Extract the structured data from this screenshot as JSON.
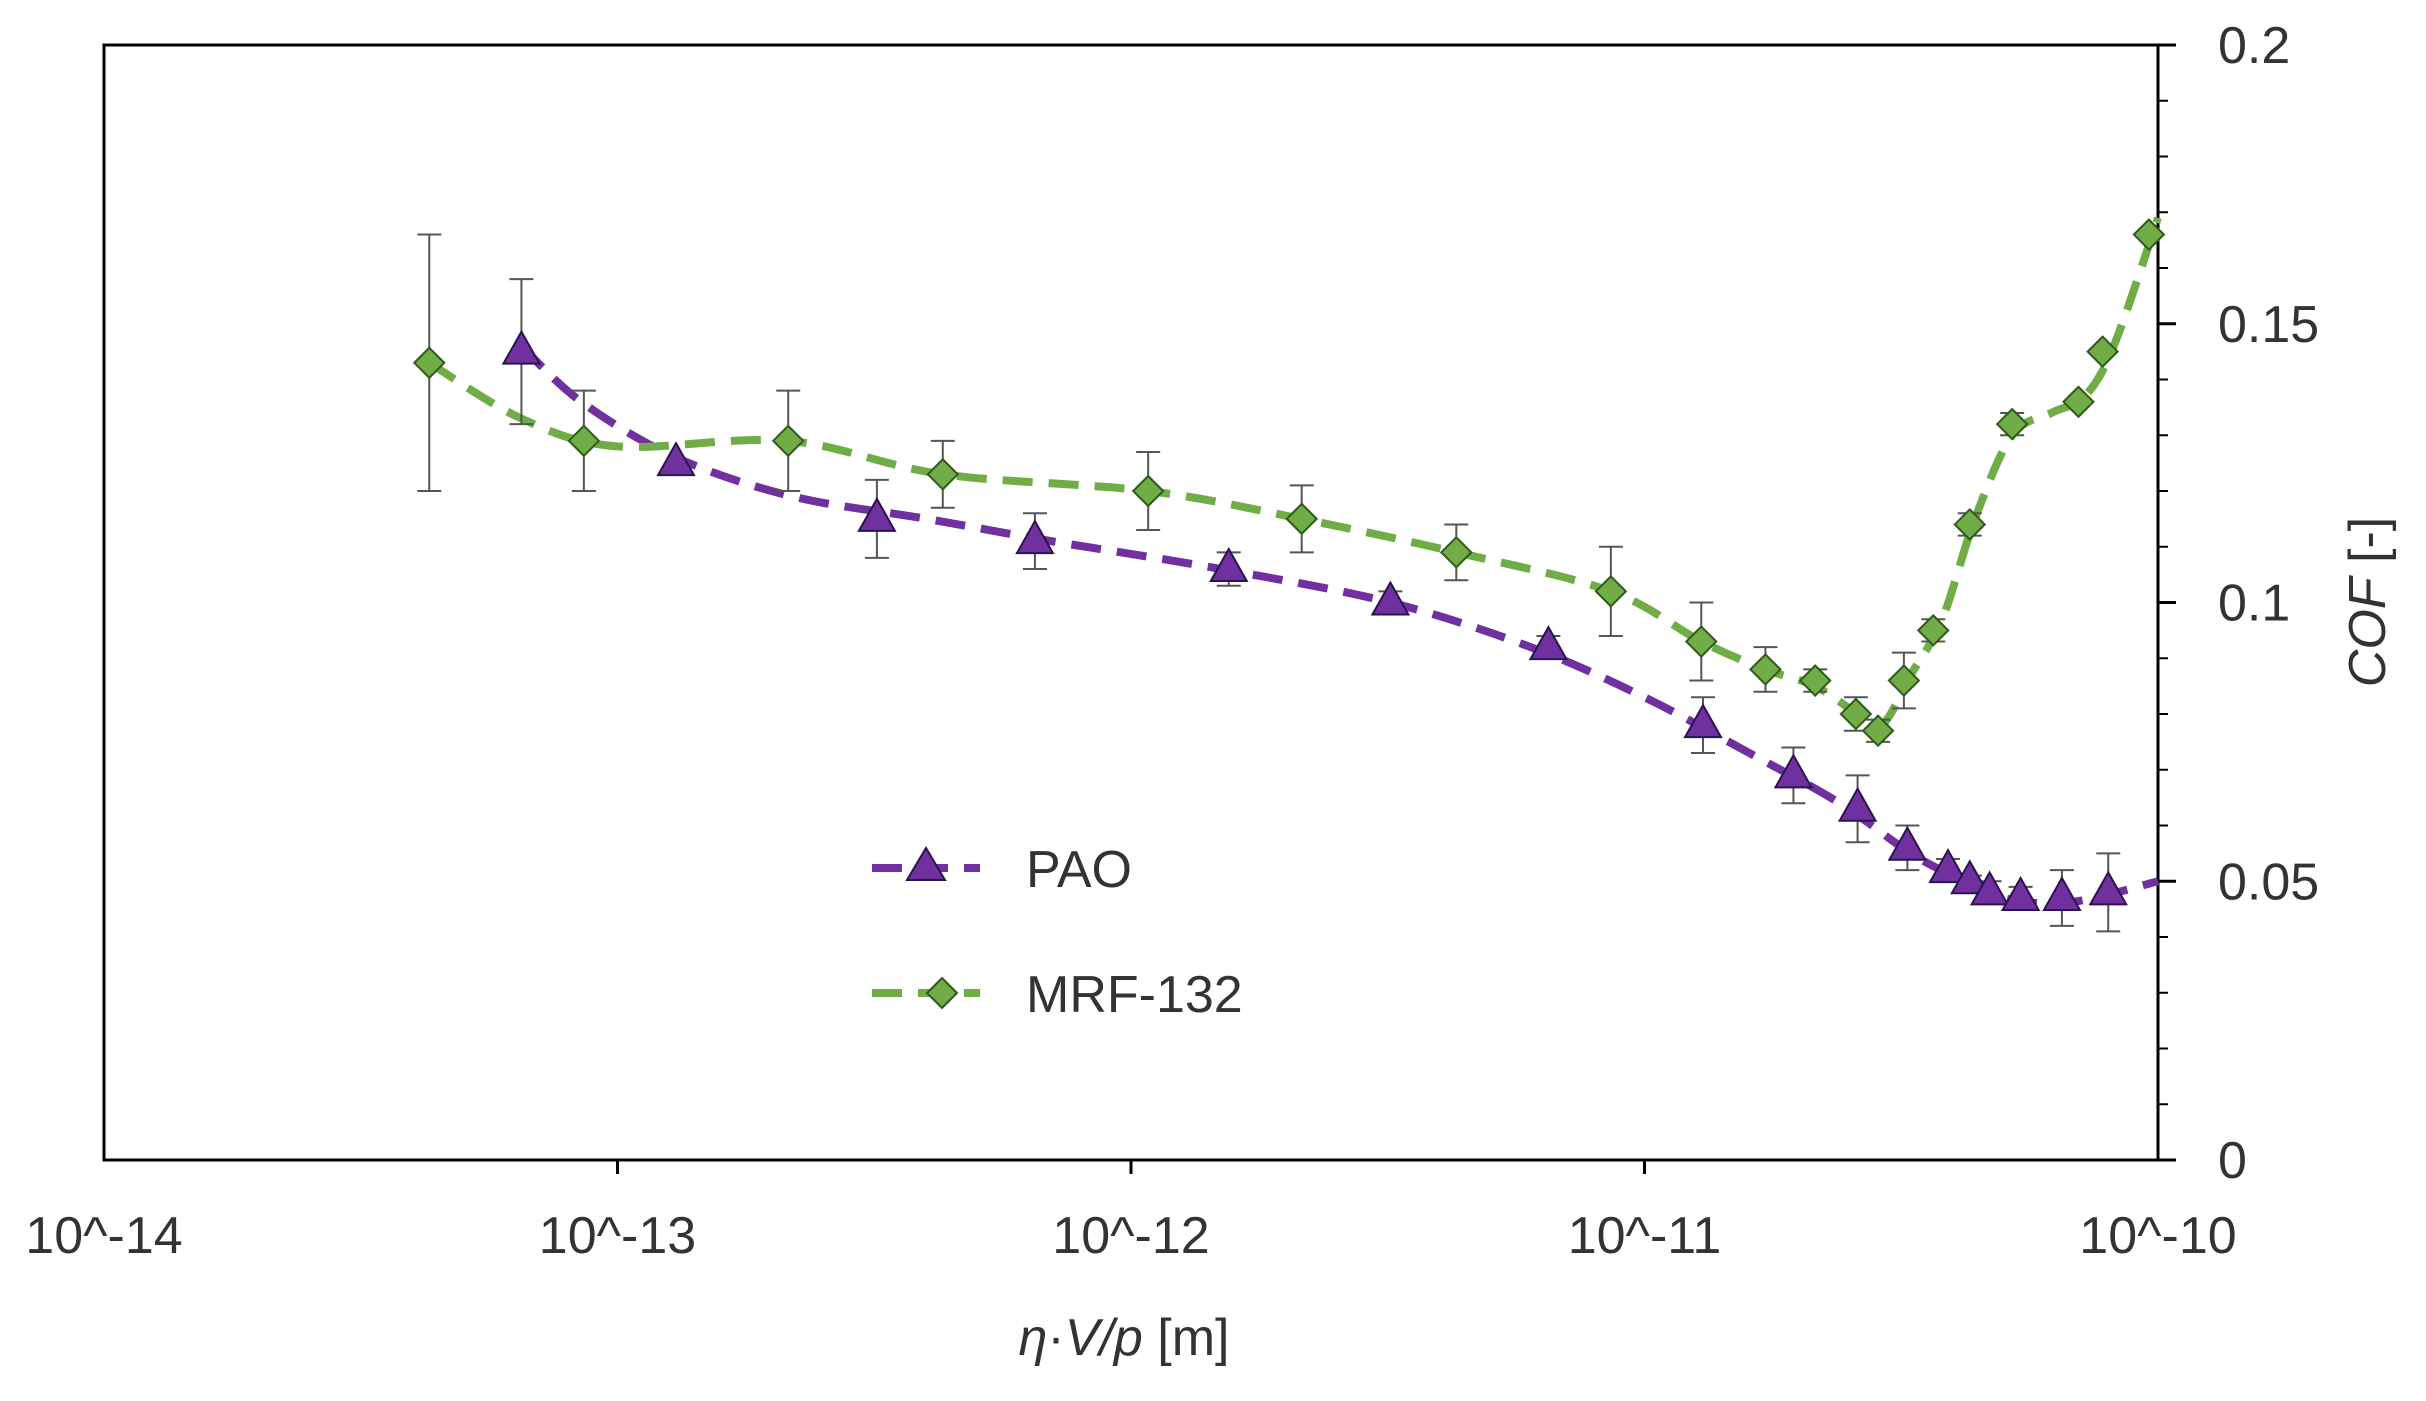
{
  "chart_data": {
    "type": "scatter",
    "title": "",
    "xlabel_parts": {
      "eta": "η",
      "dot": "·",
      "V": "V",
      "slash": "/",
      "p": "p",
      "unit": " [m]"
    },
    "ylabel_parts": {
      "cof": "COF",
      "unit": " [-]"
    },
    "x_scale": "log",
    "xlim": [
      1e-14,
      1e-10
    ],
    "ylim": [
      0,
      0.2
    ],
    "x_ticks": [
      {
        "value": 1e-14,
        "label": "10^-14"
      },
      {
        "value": 1e-13,
        "label": "10^-13"
      },
      {
        "value": 1e-12,
        "label": "10^-12"
      },
      {
        "value": 1e-11,
        "label": "10^-11"
      },
      {
        "value": 1e-10,
        "label": "10^-10"
      }
    ],
    "y_ticks": [
      {
        "value": 0,
        "label": "0"
      },
      {
        "value": 0.05,
        "label": "0.05"
      },
      {
        "value": 0.1,
        "label": "0.1"
      },
      {
        "value": 0.15,
        "label": "0.15"
      },
      {
        "value": 0.2,
        "label": "0.2"
      }
    ],
    "y_minor_step": 0.01,
    "y_axis_side": "right",
    "grid": false,
    "legend_position": "lower-left",
    "series": [
      {
        "name": "PAO",
        "color": "#7030A0",
        "marker": "triangle",
        "marker_fill": "#7030A0",
        "line_style": "dashed",
        "points": [
          {
            "x": 6.5e-14,
            "y": 0.145,
            "err": 0.013
          },
          {
            "x": 1.3e-13,
            "y": 0.125,
            "err": 0.0
          },
          {
            "x": 3.2e-13,
            "y": 0.115,
            "err": 0.007
          },
          {
            "x": 6.5e-13,
            "y": 0.111,
            "err": 0.005
          },
          {
            "x": 1.55e-12,
            "y": 0.106,
            "err": 0.003
          },
          {
            "x": 3.2e-12,
            "y": 0.1,
            "err": 0.002
          },
          {
            "x": 6.5e-12,
            "y": 0.092,
            "err": 0.002
          },
          {
            "x": 1.3e-11,
            "y": 0.078,
            "err": 0.005
          },
          {
            "x": 1.95e-11,
            "y": 0.069,
            "err": 0.005
          },
          {
            "x": 2.6e-11,
            "y": 0.063,
            "err": 0.006
          },
          {
            "x": 3.25e-11,
            "y": 0.056,
            "err": 0.004
          },
          {
            "x": 3.9e-11,
            "y": 0.052,
            "err": 0.002
          },
          {
            "x": 4.3e-11,
            "y": 0.05,
            "err": 0.001
          },
          {
            "x": 4.7e-11,
            "y": 0.048,
            "err": 0.002
          },
          {
            "x": 5.4e-11,
            "y": 0.047,
            "err": 0.002
          },
          {
            "x": 6.5e-11,
            "y": 0.047,
            "err": 0.005
          },
          {
            "x": 8e-11,
            "y": 0.048,
            "err": 0.007
          }
        ],
        "fit": [
          {
            "x": 6.5e-14,
            "y": 0.146
          },
          {
            "x": 8.5e-14,
            "y": 0.136
          },
          {
            "x": 1.3e-13,
            "y": 0.126
          },
          {
            "x": 2.2e-13,
            "y": 0.119
          },
          {
            "x": 4e-13,
            "y": 0.115
          },
          {
            "x": 7e-13,
            "y": 0.111
          },
          {
            "x": 1.5e-12,
            "y": 0.106
          },
          {
            "x": 3.2e-12,
            "y": 0.1
          },
          {
            "x": 6e-12,
            "y": 0.092
          },
          {
            "x": 1e-11,
            "y": 0.083
          },
          {
            "x": 1.6e-11,
            "y": 0.073
          },
          {
            "x": 2.4e-11,
            "y": 0.064
          },
          {
            "x": 3.3e-11,
            "y": 0.055
          },
          {
            "x": 4.2e-11,
            "y": 0.05
          },
          {
            "x": 5e-11,
            "y": 0.047
          },
          {
            "x": 6.2e-11,
            "y": 0.046
          },
          {
            "x": 7.5e-11,
            "y": 0.047
          },
          {
            "x": 1e-10,
            "y": 0.05
          }
        ]
      },
      {
        "name": "MRF-132",
        "color": "#70AD47",
        "marker": "diamond",
        "marker_fill": "#70AD47",
        "line_style": "dashed",
        "points": [
          {
            "x": 4.3e-14,
            "y": 0.143,
            "err": 0.023
          },
          {
            "x": 8.6e-14,
            "y": 0.129,
            "err": 0.009
          },
          {
            "x": 2.15e-13,
            "y": 0.129,
            "err": 0.009
          },
          {
            "x": 4.3e-13,
            "y": 0.123,
            "err": 0.006
          },
          {
            "x": 1.08e-12,
            "y": 0.12,
            "err": 0.007
          },
          {
            "x": 2.15e-12,
            "y": 0.115,
            "err": 0.006
          },
          {
            "x": 4.3e-12,
            "y": 0.109,
            "err": 0.005
          },
          {
            "x": 8.6e-12,
            "y": 0.102,
            "err": 0.008
          },
          {
            "x": 1.29e-11,
            "y": 0.093,
            "err": 0.007
          },
          {
            "x": 1.72e-11,
            "y": 0.088,
            "err": 0.004
          },
          {
            "x": 2.15e-11,
            "y": 0.086,
            "err": 0.002
          },
          {
            "x": 2.58e-11,
            "y": 0.08,
            "err": 0.003
          },
          {
            "x": 2.85e-11,
            "y": 0.077,
            "err": 0.002
          },
          {
            "x": 3.2e-11,
            "y": 0.086,
            "err": 0.005
          },
          {
            "x": 3.65e-11,
            "y": 0.095,
            "err": 0.002
          },
          {
            "x": 4.3e-11,
            "y": 0.114,
            "err": 0.002
          },
          {
            "x": 5.2e-11,
            "y": 0.132,
            "err": 0.002
          },
          {
            "x": 7e-11,
            "y": 0.136,
            "err": 0.0
          },
          {
            "x": 7.8e-11,
            "y": 0.145,
            "err": 0.0
          },
          {
            "x": 9.6e-11,
            "y": 0.166,
            "err": 0.0
          }
        ],
        "fit": [
          {
            "x": 4.3e-14,
            "y": 0.143
          },
          {
            "x": 6.5e-14,
            "y": 0.133
          },
          {
            "x": 1e-13,
            "y": 0.128
          },
          {
            "x": 2.15e-13,
            "y": 0.129
          },
          {
            "x": 4.3e-13,
            "y": 0.123
          },
          {
            "x": 1.08e-12,
            "y": 0.12
          },
          {
            "x": 2.15e-12,
            "y": 0.115
          },
          {
            "x": 4.3e-12,
            "y": 0.109
          },
          {
            "x": 8.6e-12,
            "y": 0.102
          },
          {
            "x": 1.29e-11,
            "y": 0.093
          },
          {
            "x": 1.72e-11,
            "y": 0.088
          },
          {
            "x": 2.15e-11,
            "y": 0.085
          },
          {
            "x": 2.6e-11,
            "y": 0.08
          },
          {
            "x": 2.9e-11,
            "y": 0.078
          },
          {
            "x": 3.3e-11,
            "y": 0.087
          },
          {
            "x": 3.8e-11,
            "y": 0.097
          },
          {
            "x": 4.4e-11,
            "y": 0.115
          },
          {
            "x": 5.2e-11,
            "y": 0.13
          },
          {
            "x": 6.2e-11,
            "y": 0.134
          },
          {
            "x": 7.2e-11,
            "y": 0.137
          },
          {
            "x": 8.2e-11,
            "y": 0.146
          },
          {
            "x": 1e-10,
            "y": 0.169
          }
        ]
      }
    ]
  }
}
